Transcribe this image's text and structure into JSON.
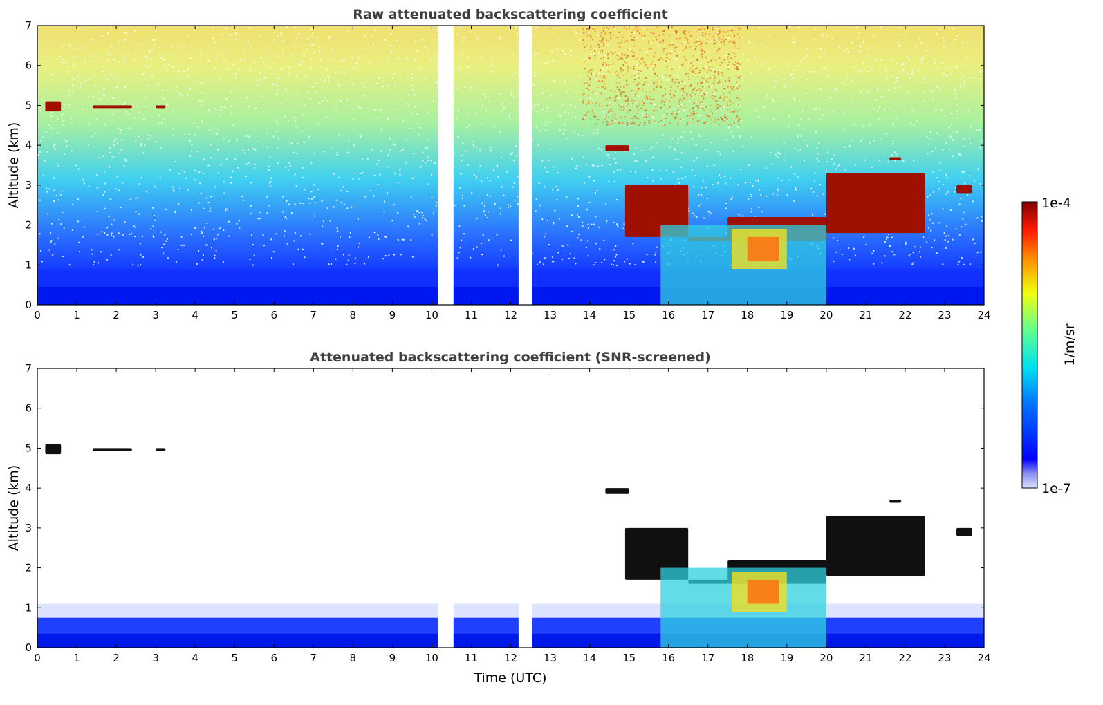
{
  "chart_data": [
    {
      "type": "heatmap",
      "title": "Raw attenuated backscattering coefficient",
      "xlabel": "",
      "ylabel": "Altitude (km)",
      "xlim": [
        0,
        24
      ],
      "ylim": [
        0,
        7
      ],
      "xticks": [
        "0",
        "1",
        "2",
        "3",
        "4",
        "5",
        "6",
        "7",
        "8",
        "9",
        "10",
        "11",
        "12",
        "13",
        "14",
        "15",
        "16",
        "17",
        "18",
        "19",
        "20",
        "21",
        "22",
        "23",
        "24"
      ],
      "yticks": [
        "0",
        "1",
        "2",
        "3",
        "4",
        "5",
        "6",
        "7"
      ],
      "data_gaps_utc": [
        [
          10.15,
          10.55
        ],
        [
          12.2,
          12.55
        ]
      ],
      "features": [
        {
          "kind": "cloud_layer",
          "time_utc": [
            0.2,
            0.6
          ],
          "altitude_km": [
            4.85,
            5.1
          ]
        },
        {
          "kind": "cloud_layer",
          "time_utc": [
            1.4,
            2.4
          ],
          "altitude_km": [
            4.95,
            5.0
          ]
        },
        {
          "kind": "cloud_layer",
          "time_utc": [
            3.0,
            3.25
          ],
          "altitude_km": [
            5.0,
            5.0
          ]
        },
        {
          "kind": "cloud_layer",
          "time_utc": [
            14.4,
            15.0
          ],
          "altitude_km": [
            3.85,
            4.0
          ]
        },
        {
          "kind": "cloud_layer",
          "time_utc": [
            14.9,
            16.5
          ],
          "altitude_km": [
            1.7,
            3.0
          ]
        },
        {
          "kind": "cloud_layer",
          "time_utc": [
            16.5,
            17.5
          ],
          "altitude_km": [
            1.6,
            1.7
          ]
        },
        {
          "kind": "cloud_layer",
          "time_utc": [
            17.5,
            20.0
          ],
          "altitude_km": [
            1.6,
            2.2
          ]
        },
        {
          "kind": "cloud_layer",
          "time_utc": [
            20.0,
            22.5
          ],
          "altitude_km": [
            1.8,
            3.3
          ]
        },
        {
          "kind": "cloud_layer",
          "time_utc": [
            21.6,
            21.9
          ],
          "altitude_km": [
            3.65,
            3.7
          ]
        },
        {
          "kind": "cloud_layer",
          "time_utc": [
            23.3,
            23.7
          ],
          "altitude_km": [
            2.8,
            3.0
          ]
        },
        {
          "kind": "precipitation",
          "time_utc": [
            15.8,
            20.0
          ],
          "altitude_km": [
            0.0,
            2.0
          ]
        }
      ]
    },
    {
      "type": "heatmap",
      "title": "Attenuated backscattering coefficient (SNR-screened)",
      "xlabel": "Time (UTC)",
      "ylabel": "Altitude (km)",
      "xlim": [
        0,
        24
      ],
      "ylim": [
        0,
        7
      ],
      "xticks": [
        "0",
        "1",
        "2",
        "3",
        "4",
        "5",
        "6",
        "7",
        "8",
        "9",
        "10",
        "11",
        "12",
        "13",
        "14",
        "15",
        "16",
        "17",
        "18",
        "19",
        "20",
        "21",
        "22",
        "23",
        "24"
      ],
      "yticks": [
        "0",
        "1",
        "2",
        "3",
        "4",
        "5",
        "6",
        "7"
      ],
      "data_gaps_utc": [
        [
          10.15,
          10.55
        ],
        [
          12.2,
          12.55
        ]
      ],
      "boundary_layer_top_km": 1.0
    }
  ],
  "colorbar": {
    "label": "1/m/sr",
    "max_label": "1e-4",
    "min_label": "1e-7",
    "scale": "log",
    "colormap": "jet"
  }
}
